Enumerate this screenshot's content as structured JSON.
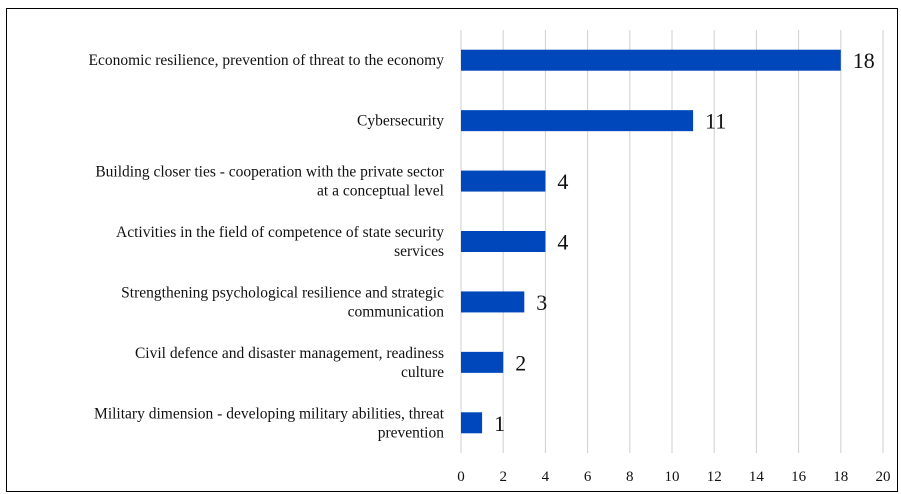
{
  "chart_data": {
    "type": "bar",
    "orientation": "horizontal",
    "categories": [
      [
        "Economic resilience, prevention of threat to the economy"
      ],
      [
        "Cybersecurity"
      ],
      [
        "Building closer ties - cooperation with the private sector",
        "at a conceptual level"
      ],
      [
        "Activities in the field of competence of state security",
        "services"
      ],
      [
        "Strengthening psychological resilience and strategic",
        "communication"
      ],
      [
        "Civil defence and disaster management, readiness",
        "culture"
      ],
      [
        "Military dimension - developing military abilities, threat",
        "prevention"
      ]
    ],
    "values": [
      18,
      11,
      4,
      4,
      3,
      2,
      1
    ],
    "xlim": [
      0,
      20
    ],
    "xticks": [
      0,
      2,
      4,
      6,
      8,
      10,
      12,
      14,
      16,
      18,
      20
    ],
    "grid": "vertical",
    "bar_color": "#0047BB",
    "title": "",
    "xlabel": "",
    "ylabel": ""
  }
}
